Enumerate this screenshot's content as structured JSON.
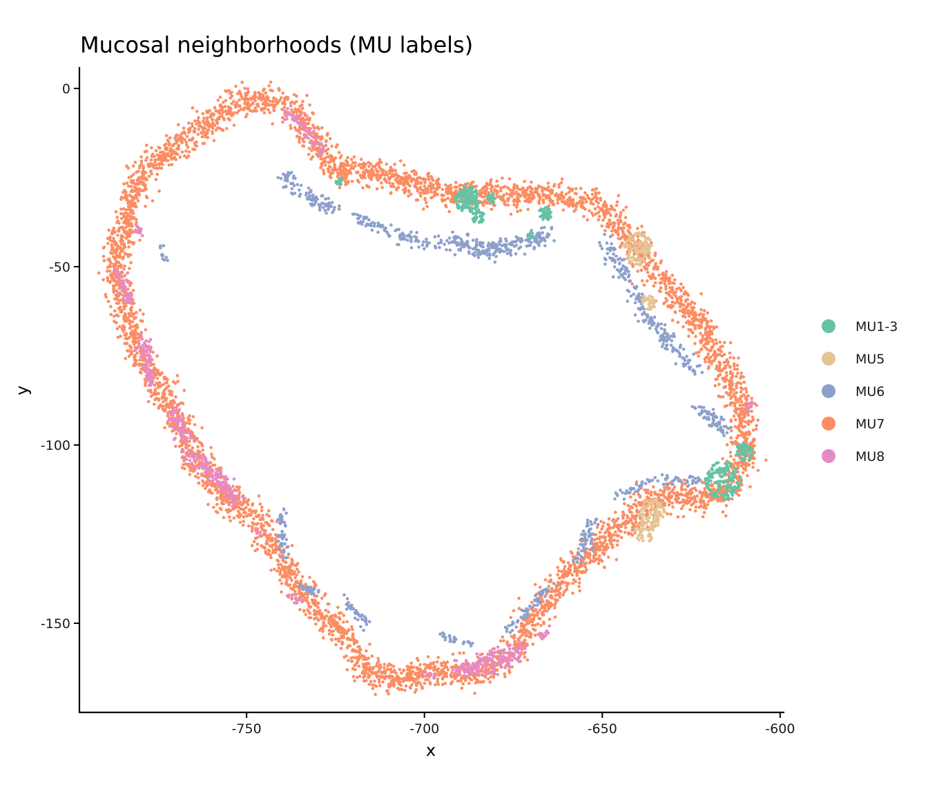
{
  "chart_data": {
    "type": "scatter",
    "title": "Mucosal neighborhoods (MU labels)",
    "xlabel": "x",
    "ylabel": "y",
    "xlim": [
      -797,
      -599
    ],
    "ylim": [
      -175,
      6
    ],
    "x_ticks": [
      {
        "value": -750,
        "label": "-750"
      },
      {
        "value": -700,
        "label": "-700"
      },
      {
        "value": -650,
        "label": "-650"
      },
      {
        "value": -600,
        "label": "-600"
      }
    ],
    "y_ticks": [
      {
        "value": 0,
        "label": "0"
      },
      {
        "value": -50,
        "label": "-50"
      },
      {
        "value": -100,
        "label": "-100"
      },
      {
        "value": -150,
        "label": "-150"
      }
    ],
    "grid": false,
    "legend_position": "right",
    "ring_path": [
      [
        -750,
        -3
      ],
      [
        -742,
        -4
      ],
      [
        -735,
        -7
      ],
      [
        -730,
        -16
      ],
      [
        -725,
        -23
      ],
      [
        -718,
        -23
      ],
      [
        -712,
        -24
      ],
      [
        -705,
        -26
      ],
      [
        -697,
        -29
      ],
      [
        -690,
        -29
      ],
      [
        -683,
        -29
      ],
      [
        -676,
        -30
      ],
      [
        -668,
        -30
      ],
      [
        -660,
        -31
      ],
      [
        -652,
        -32
      ],
      [
        -647,
        -36
      ],
      [
        -640,
        -45
      ],
      [
        -635,
        -52
      ],
      [
        -630,
        -57
      ],
      [
        -624,
        -64
      ],
      [
        -620,
        -71
      ],
      [
        -616,
        -78
      ],
      [
        -612,
        -85
      ],
      [
        -610,
        -92
      ],
      [
        -610,
        -100
      ],
      [
        -611,
        -108
      ],
      [
        -616,
        -113
      ],
      [
        -623,
        -115
      ],
      [
        -630,
        -114
      ],
      [
        -637,
        -116
      ],
      [
        -642,
        -121
      ],
      [
        -648,
        -125
      ],
      [
        -652,
        -130
      ],
      [
        -658,
        -135
      ],
      [
        -663,
        -140
      ],
      [
        -668,
        -147
      ],
      [
        -672,
        -154
      ],
      [
        -677,
        -160
      ],
      [
        -683,
        -164
      ],
      [
        -690,
        -164
      ],
      [
        -697,
        -163
      ],
      [
        -703,
        -165
      ],
      [
        -710,
        -166
      ],
      [
        -716,
        -163
      ],
      [
        -720,
        -156
      ],
      [
        -726,
        -150
      ],
      [
        -732,
        -144
      ],
      [
        -736,
        -138
      ],
      [
        -740,
        -132
      ],
      [
        -744,
        -126
      ],
      [
        -748,
        -120
      ],
      [
        -754,
        -116
      ],
      [
        -760,
        -110
      ],
      [
        -765,
        -103
      ],
      [
        -768,
        -96
      ],
      [
        -771,
        -90
      ],
      [
        -775,
        -83
      ],
      [
        -779,
        -77
      ],
      [
        -782,
        -70
      ],
      [
        -784,
        -63
      ],
      [
        -786,
        -56
      ],
      [
        -787,
        -49
      ],
      [
        -785,
        -42
      ],
      [
        -783,
        -35
      ],
      [
        -781,
        -28
      ],
      [
        -778,
        -22
      ],
      [
        -772,
        -18
      ],
      [
        -766,
        -14
      ],
      [
        -760,
        -9
      ],
      [
        -755,
        -5
      ],
      [
        -750,
        -3
      ]
    ],
    "series": [
      {
        "name": "MU1-3",
        "color": "#66C2A5",
        "clusters": [
          {
            "cx": -688,
            "cy": -31,
            "r": 3.5,
            "n": 140
          },
          {
            "cx": -685,
            "cy": -36,
            "r": 1.8,
            "n": 30
          },
          {
            "cx": -681,
            "cy": -31,
            "r": 1.4,
            "n": 20
          },
          {
            "cx": -666,
            "cy": -35,
            "r": 1.8,
            "n": 40
          },
          {
            "cx": -724,
            "cy": -26,
            "r": 1.0,
            "n": 12
          },
          {
            "cx": -670,
            "cy": -41,
            "r": 0.9,
            "n": 8
          },
          {
            "cx": -616,
            "cy": -110,
            "r": 5.0,
            "n": 150
          },
          {
            "cx": -610,
            "cy": -102,
            "r": 2.4,
            "n": 50
          }
        ]
      },
      {
        "name": "MU5",
        "color": "#E5C494",
        "clusters": [
          {
            "cx": -640,
            "cy": -45,
            "r": 4.2,
            "n": 110
          },
          {
            "cx": -637,
            "cy": -60,
            "r": 2.0,
            "n": 30
          },
          {
            "cx": -636,
            "cy": -119,
            "r": 3.6,
            "n": 90
          },
          {
            "cx": -638,
            "cy": -124,
            "r": 3.0,
            "n": 45
          }
        ]
      },
      {
        "name": "MU6",
        "color": "#8DA0CB",
        "paths": [
          {
            "pts": [
              [
                -740,
                -24
              ],
              [
                -735,
                -29
              ],
              [
                -730,
                -32
              ],
              [
                -725,
                -33
              ]
            ],
            "w": 2.2,
            "n": 90
          },
          {
            "pts": [
              [
                -720,
                -36
              ],
              [
                -712,
                -39
              ],
              [
                -705,
                -42
              ],
              [
                -698,
                -44
              ]
            ],
            "w": 2.0,
            "n": 90
          },
          {
            "pts": [
              [
                -695,
                -43
              ],
              [
                -688,
                -44
              ],
              [
                -680,
                -45
              ],
              [
                -672,
                -43
              ],
              [
                -665,
                -41
              ]
            ],
            "w": 2.6,
            "n": 230
          },
          {
            "pts": [
              [
                -650,
                -43
              ],
              [
                -646,
                -49
              ],
              [
                -642,
                -54
              ],
              [
                -638,
                -64
              ],
              [
                -632,
                -70
              ],
              [
                -626,
                -77
              ],
              [
                -623,
                -80
              ]
            ],
            "w": 2.2,
            "n": 200
          },
          {
            "pts": [
              [
                -624,
                -89
              ],
              [
                -620,
                -92
              ],
              [
                -615,
                -96
              ]
            ],
            "w": 2.0,
            "n": 60
          },
          {
            "pts": [
              [
                -623,
                -110
              ],
              [
                -630,
                -110
              ],
              [
                -637,
                -110
              ],
              [
                -642,
                -113
              ],
              [
                -646,
                -114
              ]
            ],
            "w": 1.4,
            "n": 70
          },
          {
            "pts": [
              [
                -653,
                -121
              ],
              [
                -655,
                -128
              ],
              [
                -657,
                -132
              ]
            ],
            "w": 2.0,
            "n": 60
          },
          {
            "pts": [
              [
                -663,
                -140
              ],
              [
                -668,
                -143
              ],
              [
                -672,
                -148
              ],
              [
                -677,
                -152
              ]
            ],
            "w": 1.5,
            "n": 50
          },
          {
            "pts": [
              [
                -695,
                -153
              ],
              [
                -691,
                -155
              ],
              [
                -687,
                -156
              ]
            ],
            "w": 1.0,
            "n": 25
          },
          {
            "pts": [
              [
                -722,
                -144
              ],
              [
                -718,
                -148
              ],
              [
                -716,
                -151
              ]
            ],
            "w": 1.5,
            "n": 40
          },
          {
            "pts": [
              [
                -740,
                -119
              ],
              [
                -740,
                -126
              ],
              [
                -739,
                -132
              ]
            ],
            "w": 1.3,
            "n": 50
          },
          {
            "pts": [
              [
                -735,
                -140
              ],
              [
                -730,
                -141
              ]
            ],
            "w": 1.0,
            "n": 25
          },
          {
            "pts": [
              [
                -774,
                -44
              ],
              [
                -773,
                -48
              ]
            ],
            "w": 0.9,
            "n": 12
          }
        ]
      },
      {
        "name": "MU8",
        "color": "#E78AC3",
        "paths": [
          {
            "pts": [
              [
                -739,
                -7
              ],
              [
                -735,
                -9
              ],
              [
                -731,
                -15
              ],
              [
                -728,
                -18
              ]
            ],
            "w": 1.8,
            "n": 60
          },
          {
            "pts": [
              [
                -781,
                -38
              ],
              [
                -780,
                -41
              ]
            ],
            "w": 1.0,
            "n": 15
          },
          {
            "pts": [
              [
                -786,
                -52
              ],
              [
                -784,
                -57
              ],
              [
                -783,
                -60
              ]
            ],
            "w": 1.8,
            "n": 50
          },
          {
            "pts": [
              [
                -779,
                -70
              ],
              [
                -778,
                -76
              ],
              [
                -777,
                -83
              ]
            ],
            "w": 2.0,
            "n": 70
          },
          {
            "pts": [
              [
                -771,
                -90
              ],
              [
                -769,
                -94
              ],
              [
                -767,
                -99
              ]
            ],
            "w": 2.0,
            "n": 70
          },
          {
            "pts": [
              [
                -766,
                -102
              ],
              [
                -762,
                -106
              ],
              [
                -757,
                -110
              ],
              [
                -753,
                -116
              ]
            ],
            "w": 2.5,
            "n": 130
          },
          {
            "pts": [
              [
                -748,
                -124
              ],
              [
                -744,
                -125
              ]
            ],
            "w": 0.7,
            "n": 6
          },
          {
            "pts": [
              [
                -738,
                -142
              ],
              [
                -735,
                -144
              ]
            ],
            "w": 0.9,
            "n": 12
          },
          {
            "pts": [
              [
                -690,
                -163
              ],
              [
                -683,
                -162
              ],
              [
                -677,
                -159
              ],
              [
                -673,
                -157
              ]
            ],
            "w": 3.0,
            "n": 170
          },
          {
            "pts": [
              [
                -701,
                -164
              ],
              [
                -697,
                -165
              ]
            ],
            "w": 0.8,
            "n": 10
          },
          {
            "pts": [
              [
                -667,
                -154
              ],
              [
                -665,
                -151
              ]
            ],
            "w": 1.0,
            "n": 15
          },
          {
            "pts": [
              [
                -608,
                -88
              ],
              [
                -609,
                -91
              ]
            ],
            "w": 0.8,
            "n": 8
          }
        ]
      },
      {
        "name": "MU7",
        "color": "#FC8D62",
        "ring": {
          "w": 3.2,
          "n": 5200
        }
      }
    ],
    "draw_order": [
      "MU7",
      "MU6",
      "MU8",
      "MU5",
      "MU1-3"
    ],
    "legend_order": [
      "MU1-3",
      "MU5",
      "MU6",
      "MU7",
      "MU8"
    ]
  }
}
